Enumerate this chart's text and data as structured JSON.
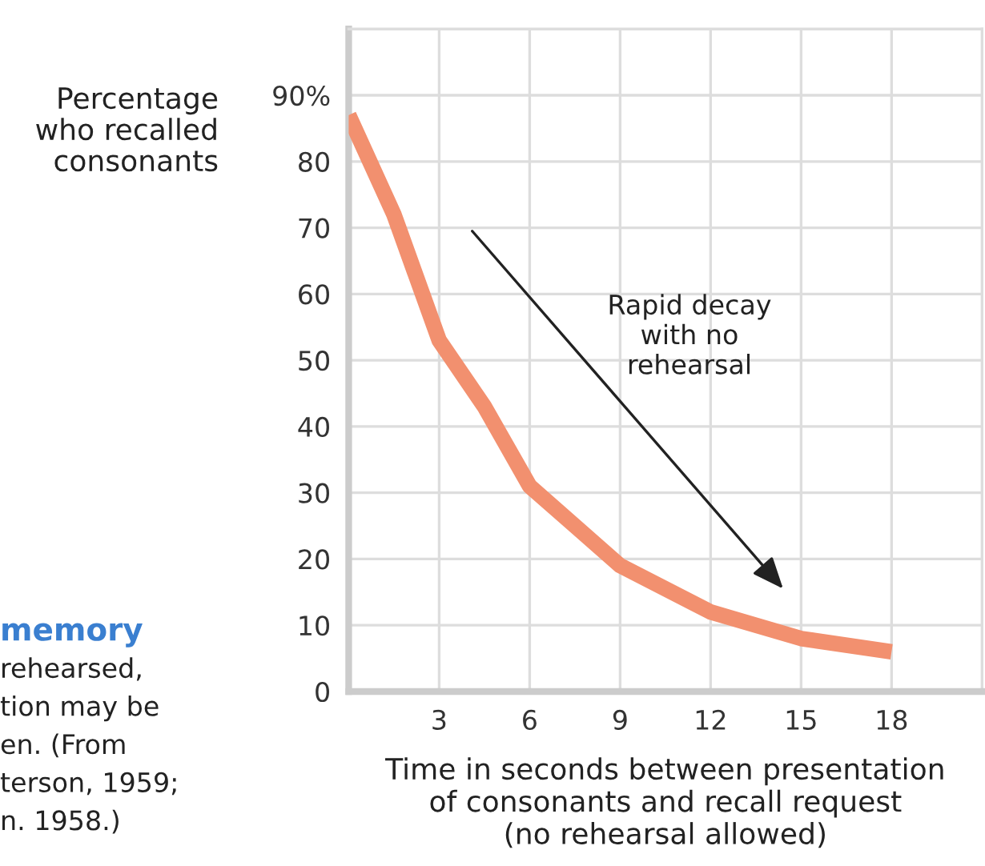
{
  "chart_data": {
    "type": "line",
    "ylabel": "Percentage\nwho recalled\nconsonants",
    "xlabel": "Time in seconds between presentation\nof consonants and recall request\n(no rehearsal allowed)",
    "x": [
      0,
      1.5,
      3,
      4.5,
      6,
      7.5,
      9,
      12,
      15,
      18
    ],
    "series": [
      {
        "color": "#f2906f",
        "values": [
          87,
          72,
          53,
          43,
          31,
          25,
          19,
          12,
          8,
          6
        ]
      }
    ],
    "xlim": [
      0,
      21
    ],
    "xticks": [
      3,
      6,
      9,
      12,
      15,
      18
    ],
    "ylim": [
      0,
      100
    ],
    "yticks": [
      0,
      10,
      20,
      30,
      40,
      50,
      60,
      70,
      80,
      {
        "value": 90,
        "label": "90%"
      }
    ],
    "grid": true,
    "marker": "none",
    "line_style": "solid",
    "annotations": [
      "Rapid decay\nwith no\nrehearsal",
      "memory",
      "rehearsed,",
      "tion may be",
      "en. (From",
      "terson, 1959;",
      "n. 1958.)"
    ]
  }
}
